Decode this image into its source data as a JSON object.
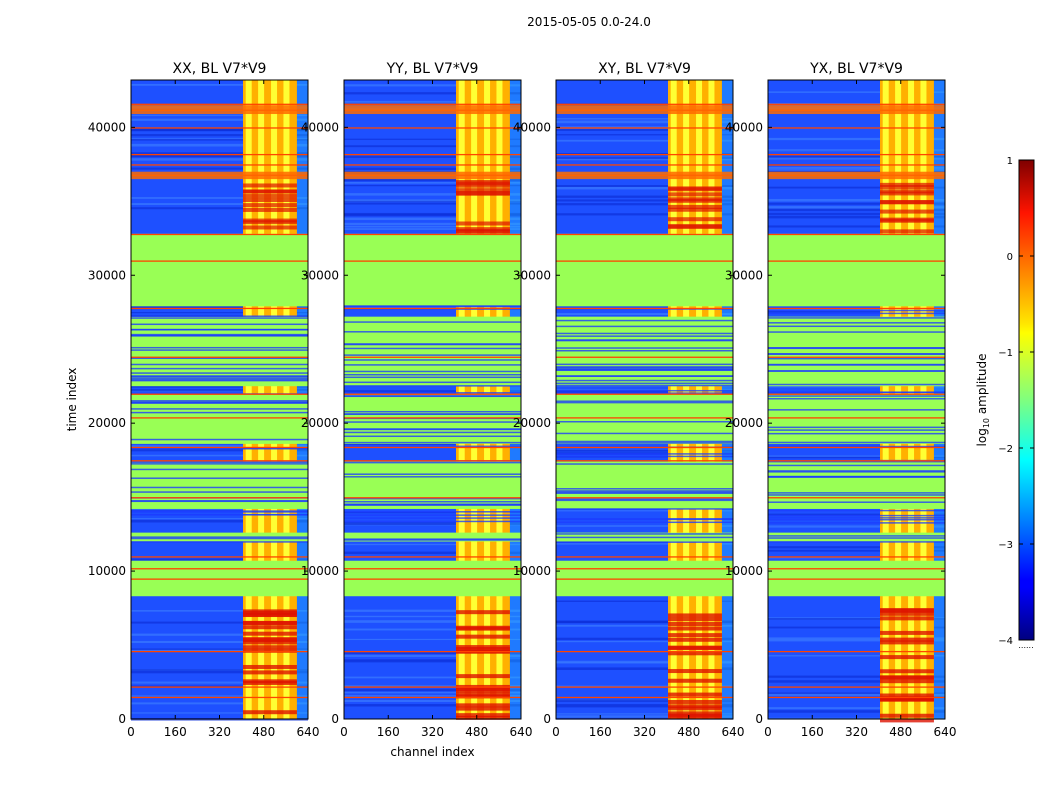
{
  "suptitle": "2015-05-05 0.0-24.0",
  "chart_data": [
    {
      "type": "heatmap",
      "title": "XX, BL V7*V9",
      "xlabel": "",
      "ylabel": "time index",
      "xlim": [
        0,
        640
      ],
      "ylim": [
        0,
        43200
      ],
      "xticks": [
        0,
        160,
        320,
        480,
        640
      ],
      "yticks": [
        0,
        10000,
        20000,
        30000,
        40000
      ],
      "flagged_rows": [
        [
          8300,
          10700
        ],
        [
          12000,
          12600
        ],
        [
          14200,
          17400
        ],
        [
          18600,
          22000
        ],
        [
          22500,
          27200
        ],
        [
          27900,
          32800
        ]
      ],
      "bright_channel_range": [
        405,
        600
      ]
    },
    {
      "type": "heatmap",
      "title": "YY, BL V7*V9",
      "xlabel": "channel index",
      "ylabel": "",
      "xlim": [
        0,
        640
      ],
      "ylim": [
        0,
        43200
      ],
      "xticks": [
        0,
        160,
        320,
        480,
        640
      ],
      "yticks": [
        0,
        10000,
        20000,
        30000,
        40000
      ],
      "flagged_rows": [
        [
          8300,
          10700
        ],
        [
          12000,
          12600
        ],
        [
          14200,
          17400
        ],
        [
          18600,
          22000
        ],
        [
          22500,
          27200
        ],
        [
          27900,
          32800
        ]
      ],
      "bright_channel_range": [
        405,
        600
      ]
    },
    {
      "type": "heatmap",
      "title": "XY, BL V7*V9",
      "xlabel": "",
      "ylabel": "",
      "xlim": [
        0,
        640
      ],
      "ylim": [
        0,
        43200
      ],
      "xticks": [
        0,
        160,
        320,
        480,
        640
      ],
      "yticks": [
        0,
        10000,
        20000,
        30000,
        40000
      ],
      "flagged_rows": [
        [
          8300,
          10700
        ],
        [
          12000,
          12600
        ],
        [
          14200,
          17400
        ],
        [
          18600,
          22000
        ],
        [
          22500,
          27200
        ],
        [
          27900,
          32800
        ]
      ],
      "bright_channel_range": [
        405,
        600
      ]
    },
    {
      "type": "heatmap",
      "title": "YX, BL V7*V9",
      "xlabel": "",
      "ylabel": "",
      "xlim": [
        0,
        640
      ],
      "ylim": [
        0,
        43200
      ],
      "xticks": [
        0,
        160,
        320,
        480,
        640
      ],
      "yticks": [
        0,
        10000,
        20000,
        30000,
        40000
      ],
      "flagged_rows": [
        [
          8300,
          10700
        ],
        [
          12000,
          12600
        ],
        [
          14200,
          17400
        ],
        [
          18600,
          22000
        ],
        [
          22500,
          27200
        ],
        [
          27900,
          32800
        ]
      ],
      "bright_channel_range": [
        405,
        600
      ]
    }
  ],
  "colorbar": {
    "label_prefix": "log",
    "label_sub": "10",
    "label_suffix": " amplitude",
    "min": -4,
    "max": 1,
    "ticks": [
      1,
      0,
      -1,
      -2,
      -3,
      -4
    ],
    "tick_labels": [
      "1",
      "0",
      "−1",
      "−2",
      "−3",
      "−4"
    ],
    "colormap": "jet",
    "footer": "......"
  },
  "colors": {
    "flagged": "#99ff55",
    "stripe": "#ff4400",
    "background": "#1e50ff"
  }
}
